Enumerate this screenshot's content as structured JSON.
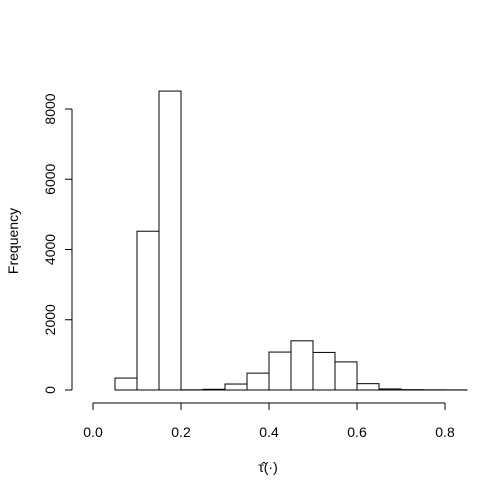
{
  "chart_data": {
    "type": "bar",
    "title": "",
    "xlabel": "τ̂(·)",
    "ylabel": "Frequency",
    "bins": [
      {
        "x0": 0.0,
        "x1": 0.05,
        "count": 0
      },
      {
        "x0": 0.05,
        "x1": 0.1,
        "count": 340
      },
      {
        "x0": 0.1,
        "x1": 0.15,
        "count": 4520
      },
      {
        "x0": 0.15,
        "x1": 0.2,
        "count": 8510
      },
      {
        "x0": 0.2,
        "x1": 0.25,
        "count": 5
      },
      {
        "x0": 0.25,
        "x1": 0.3,
        "count": 20
      },
      {
        "x0": 0.3,
        "x1": 0.35,
        "count": 170
      },
      {
        "x0": 0.35,
        "x1": 0.4,
        "count": 480
      },
      {
        "x0": 0.4,
        "x1": 0.45,
        "count": 1080
      },
      {
        "x0": 0.45,
        "x1": 0.5,
        "count": 1400
      },
      {
        "x0": 0.5,
        "x1": 0.55,
        "count": 1070
      },
      {
        "x0": 0.55,
        "x1": 0.6,
        "count": 800
      },
      {
        "x0": 0.6,
        "x1": 0.65,
        "count": 180
      },
      {
        "x0": 0.65,
        "x1": 0.7,
        "count": 30
      },
      {
        "x0": 0.7,
        "x1": 0.75,
        "count": 10
      },
      {
        "x0": 0.75,
        "x1": 0.8,
        "count": 5
      },
      {
        "x0": 0.8,
        "x1": 0.85,
        "count": 3
      }
    ],
    "x_ticks": [
      0.0,
      0.2,
      0.4,
      0.6,
      0.8
    ],
    "x_tick_labels": [
      "0.0",
      "0.2",
      "0.4",
      "0.6",
      "0.8"
    ],
    "y_ticks": [
      0,
      2000,
      4000,
      6000,
      8000
    ],
    "y_tick_labels": [
      "0",
      "2000",
      "4000",
      "6000",
      "8000"
    ],
    "xlim": [
      0.0,
      0.85
    ],
    "ylim": [
      0,
      8000
    ],
    "grid": false,
    "legend": "none",
    "colors": {
      "bar_fill": "#ffffff",
      "bar_stroke": "#000000",
      "axis": "#000000"
    }
  }
}
